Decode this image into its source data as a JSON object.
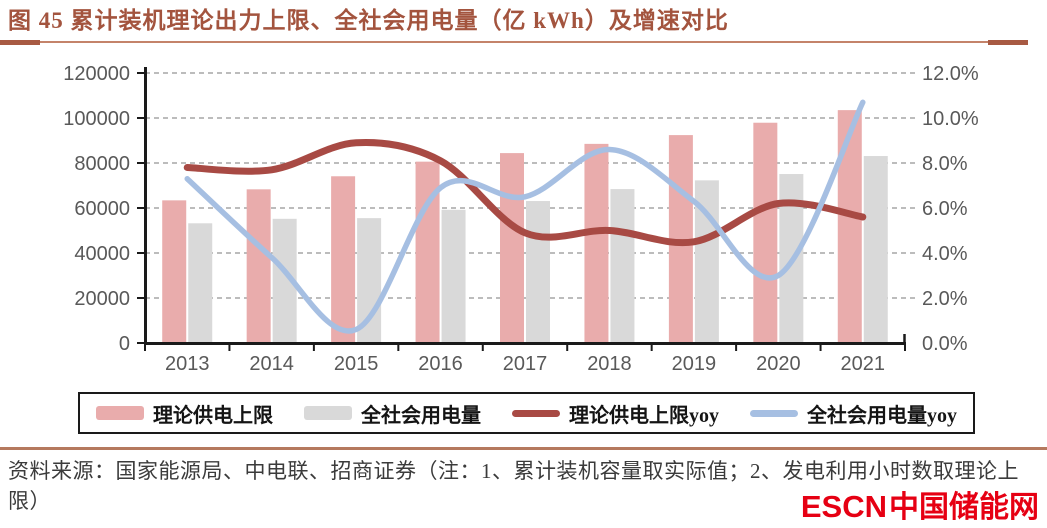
{
  "header": {
    "title": "图 45  累计装机理论出力上限、全社会用电量（亿 kWh）及增速对比"
  },
  "chart_data": {
    "type": "combo",
    "categories": [
      "2013",
      "2014",
      "2015",
      "2016",
      "2017",
      "2018",
      "2019",
      "2020",
      "2021"
    ],
    "series": [
      {
        "name": "理论供电上限",
        "type": "bar",
        "axis": "left",
        "color": "#E9ACAC",
        "values": [
          63400,
          68300,
          74100,
          80600,
          84400,
          88500,
          92400,
          97900,
          103500
        ]
      },
      {
        "name": "全社会用电量",
        "type": "bar",
        "axis": "left",
        "color": "#D9D9D9",
        "values": [
          53200,
          55200,
          55500,
          59200,
          63100,
          68400,
          72300,
          75100,
          83100
        ]
      },
      {
        "name": "理论供电上限yoy",
        "type": "line",
        "axis": "right",
        "color": "#A84A44",
        "values": [
          7.8,
          7.7,
          8.9,
          8.1,
          4.9,
          5.0,
          4.5,
          6.2,
          5.6
        ]
      },
      {
        "name": "全社会用电量yoy",
        "type": "line",
        "axis": "right",
        "color": "#A6BFE2",
        "values": [
          7.3,
          3.8,
          0.6,
          6.9,
          6.5,
          8.6,
          6.3,
          3.0,
          10.7
        ]
      }
    ],
    "left_axis": {
      "min": 0,
      "max": 120000,
      "step": 20000,
      "ticks": [
        "0",
        "20000",
        "40000",
        "60000",
        "80000",
        "100000",
        "120000"
      ]
    },
    "right_axis": {
      "min": 0,
      "max": 12,
      "step": 2,
      "ticks": [
        "0.0%",
        "2.0%",
        "4.0%",
        "6.0%",
        "8.0%",
        "10.0%",
        "12.0%"
      ]
    },
    "title": "累计装机理论出力上限、全社会用电量（亿 kWh）及增速对比",
    "xlabel": "",
    "ylabel": "",
    "grid": "dashed-horizontal",
    "legend_position": "bottom"
  },
  "footer": {
    "source": "资料来源：国家能源局、中电联、招商证券（注：1、累计装机容量取实际值；2、发电利用小时数取理论上限）"
  },
  "logo": {
    "en": "ESCN",
    "cn": "中国储能网"
  },
  "colors": {
    "title": "#A3543E",
    "rule": "#C4836A",
    "axis_text": "#595959",
    "axis_line": "#1a1a1a",
    "gridline": "#A6A6A6",
    "logo_red": "#E60013"
  }
}
